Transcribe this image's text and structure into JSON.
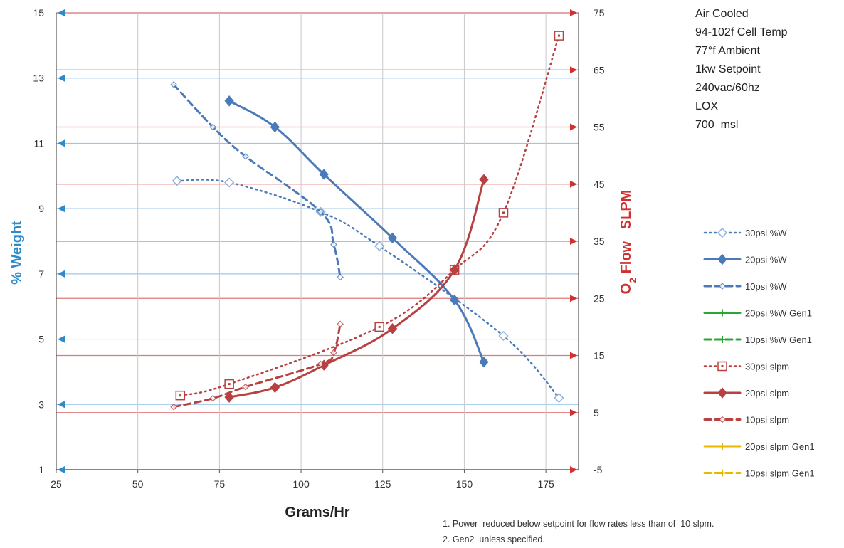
{
  "chart_data": {
    "type": "line",
    "title": "",
    "xlabel": "Grams/Hr",
    "ylabel_left": "% Weight",
    "ylabel_right_prefix": "O",
    "ylabel_right_sub": "2",
    "ylabel_right_suffix": " Flow   SLPM",
    "xlim": [
      25,
      185
    ],
    "ylim_left": [
      1,
      15
    ],
    "ylim_right": [
      -5,
      75
    ],
    "x_ticks": [
      "25",
      "50",
      "75",
      "100",
      "125",
      "150",
      "175"
    ],
    "x_tick_values": [
      25,
      50,
      75,
      100,
      125,
      150,
      175
    ],
    "y_left_ticks": [
      "1",
      "3",
      "5",
      "7",
      "9",
      "11",
      "13",
      "15"
    ],
    "y_left_tick_values": [
      1,
      3,
      5,
      7,
      9,
      11,
      13,
      15
    ],
    "y_right_ticks": [
      "-5",
      "5",
      "15",
      "25",
      "35",
      "45",
      "55",
      "65",
      "75"
    ],
    "y_right_tick_values": [
      -5,
      5,
      15,
      25,
      35,
      45,
      55,
      65,
      75
    ],
    "grid": true,
    "legend_position": "right",
    "colors": {
      "blue": "#4a7ab8",
      "red": "#b84040",
      "left_axis": "#2e8bc9",
      "right_axis": "#d03030",
      "left_grid": "#9cc8e8",
      "right_grid": "#e07878",
      "green": "#2aa632",
      "yellow": "#e8b800"
    },
    "series": [
      {
        "name": "30psi %W",
        "axis": "left",
        "color": "#4a7ab8",
        "dash": "dot",
        "marker": "diamond-open",
        "x": [
          62,
          78,
          106,
          124,
          162,
          179
        ],
        "y": [
          9.85,
          9.8,
          8.9,
          7.85,
          5.1,
          3.2
        ]
      },
      {
        "name": "20psi %W",
        "axis": "left",
        "color": "#4a7ab8",
        "dash": "solid",
        "marker": "diamond-filled",
        "x": [
          78,
          92,
          107,
          128,
          147,
          156
        ],
        "y": [
          12.3,
          11.5,
          10.05,
          8.1,
          6.2,
          4.3
        ]
      },
      {
        "name": "10psi %W",
        "axis": "left",
        "color": "#4a7ab8",
        "dash": "dash",
        "marker": "diamond-small",
        "x": [
          61,
          73,
          83,
          106,
          110,
          112
        ],
        "y": [
          12.8,
          11.5,
          10.6,
          8.9,
          7.9,
          6.9
        ]
      },
      {
        "name": "20psi %W Gen1",
        "axis": "left",
        "color": "#2aa632",
        "dash": "solid",
        "marker": "plus",
        "x": [],
        "y": []
      },
      {
        "name": "10psi %W Gen1",
        "axis": "left",
        "color": "#2aa632",
        "dash": "dash",
        "marker": "plus",
        "x": [],
        "y": []
      },
      {
        "name": "30psi slpm",
        "axis": "right",
        "color": "#b84040",
        "dash": "dot",
        "marker": "square-open",
        "x": [
          63,
          78,
          124,
          147,
          162,
          179
        ],
        "y": [
          8,
          10,
          20,
          30,
          40,
          71
        ]
      },
      {
        "name": "20psi slpm",
        "axis": "right",
        "color": "#b84040",
        "dash": "solid",
        "marker": "diamond-filled",
        "x": [
          78,
          92,
          107,
          128,
          147,
          156
        ],
        "y": [
          7.7,
          9.4,
          13.3,
          19.7,
          30,
          45.8
        ]
      },
      {
        "name": "10psi slpm",
        "axis": "right",
        "color": "#b84040",
        "dash": "dash",
        "marker": "diamond-small",
        "x": [
          61,
          73,
          83,
          106,
          110,
          112
        ],
        "y": [
          6,
          7.5,
          9.5,
          13.5,
          15.5,
          20.5
        ]
      },
      {
        "name": "20psi slpm Gen1",
        "axis": "right",
        "color": "#e8b800",
        "dash": "solid",
        "marker": "plus",
        "x": [],
        "y": []
      },
      {
        "name": "10psi slpm Gen1",
        "axis": "right",
        "color": "#e8b800",
        "dash": "dash",
        "marker": "plus",
        "x": [],
        "y": []
      }
    ],
    "annotations": [
      "Air Cooled",
      "94-102f Cell Temp",
      "77°f Ambient",
      "1kw Setpoint",
      "240vac/60hz",
      "LOX",
      "700  msl"
    ],
    "footnotes": [
      "1. Power  reduced below setpoint for flow rates less than of  10 slpm.",
      "2. Gen2  unless specified."
    ]
  }
}
